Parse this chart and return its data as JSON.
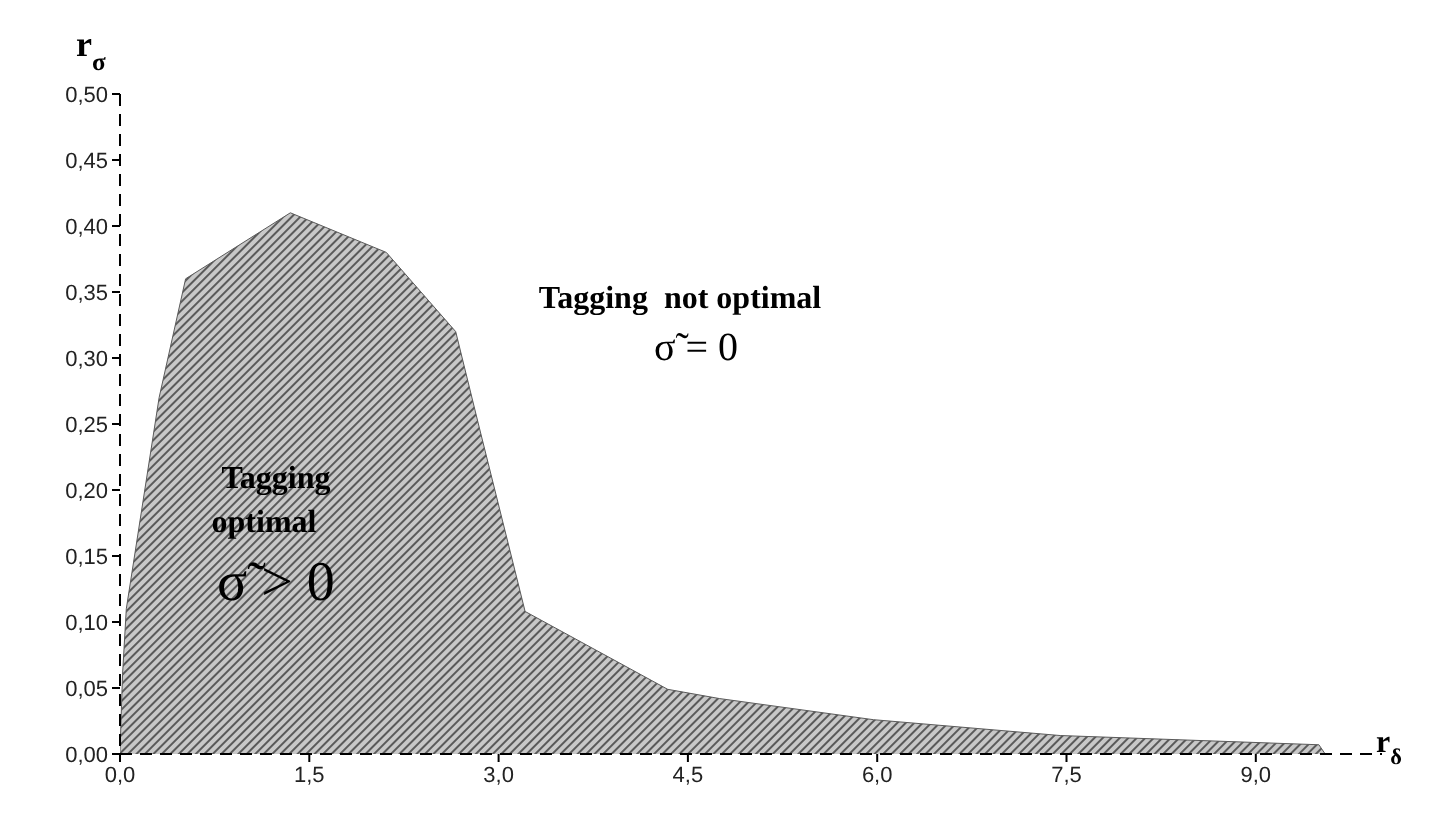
{
  "chart_data": {
    "type": "area",
    "xlabel": "r$_{δ}$",
    "ylabel": "r$_{σ}$",
    "x": [
      0,
      0.02,
      0.05,
      0.31,
      0.52,
      1.35,
      2.11,
      2.66,
      2.84,
      3.21,
      4.34,
      4.75,
      5.97,
      7.45,
      9.5,
      9.55
    ],
    "series": [
      {
        "color": "#5a5a5a",
        "values": [
          0.002,
          0.06,
          0.11,
          0.27,
          0.36,
          0.41,
          0.38,
          0.32,
          0.25,
          0.108,
          0.049,
          0.042,
          0.026,
          0.014,
          0.007,
          0
        ]
      }
    ],
    "xlim": [
      0,
      10
    ],
    "ylim": [
      0,
      0.5
    ],
    "xticks": [
      {
        "value": 0,
        "label": "0,0"
      },
      {
        "value": 1.5,
        "label": "1,5"
      },
      {
        "value": 3,
        "label": "3,0"
      },
      {
        "value": 4.5,
        "label": "4,5"
      },
      {
        "value": 6,
        "label": "6,0"
      },
      {
        "value": 7.5,
        "label": "7,5"
      },
      {
        "value": 9,
        "label": "9,0"
      }
    ],
    "yticks": [
      {
        "value": 0,
        "label": "0,00"
      },
      {
        "value": 0.05,
        "label": "0,05"
      },
      {
        "value": 0.1,
        "label": "0,10"
      },
      {
        "value": 0.15,
        "label": "0,15"
      },
      {
        "value": 0.2,
        "label": "0,20"
      },
      {
        "value": 0.25,
        "label": "0,25"
      },
      {
        "value": 0.3,
        "label": "0,30"
      },
      {
        "value": 0.35,
        "label": "0,35"
      },
      {
        "value": 0.4,
        "label": "0,40"
      },
      {
        "value": 0.45,
        "label": "0,45"
      },
      {
        "value": 0.5,
        "label": "0,50"
      }
    ],
    "annotations": [
      "Tagging  not optimal",
      "σ̃ = 0",
      "Tagging",
      "optimal",
      "σ̃ > 0"
    ],
    "grid": false,
    "legend": false,
    "marker": "none",
    "line_style": "solid"
  }
}
